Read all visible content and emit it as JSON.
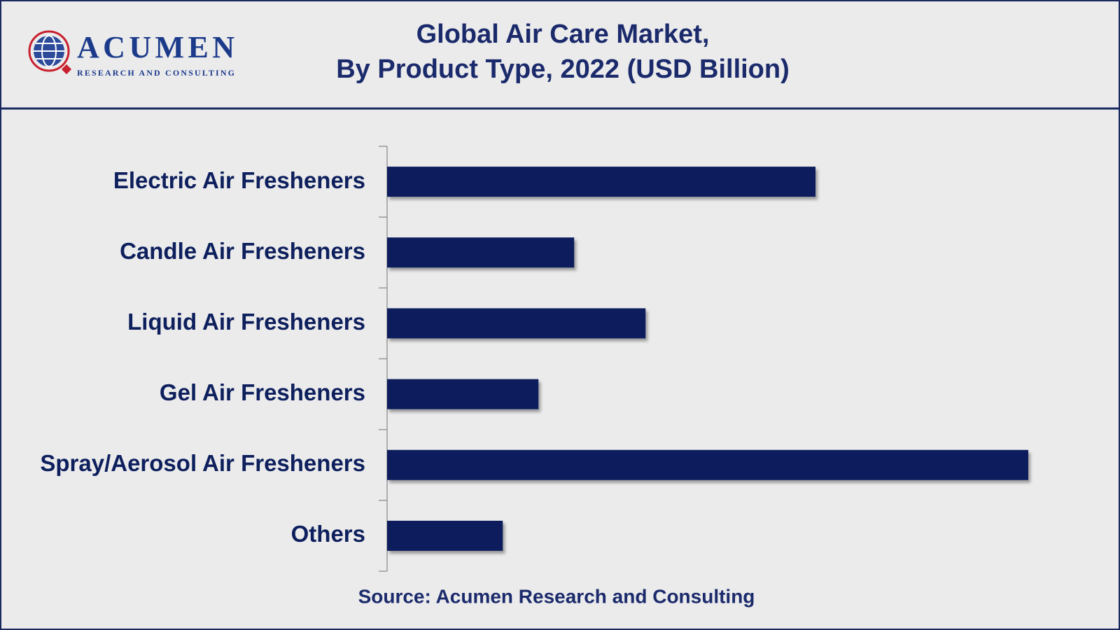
{
  "logo": {
    "name": "ACUMEN",
    "tagline": "RESEARCH AND CONSULTING"
  },
  "chart_data": {
    "type": "bar",
    "orientation": "horizontal",
    "title": [
      "Global Air Care Market,",
      "By Product Type, 2022 (USD Billion)"
    ],
    "categories": [
      "Electric Air Fresheners",
      "Candle Air Fresheners",
      "Liquid Air Fresheners",
      "Gel Air Fresheners",
      "Spray/Aerosol Air Fresheners",
      "Others"
    ],
    "values": [
      3.0,
      1.31,
      1.81,
      1.06,
      4.49,
      0.81
    ],
    "color": "#0b1f5b",
    "xlim": [
      0,
      5
    ],
    "source": "Source: Acumen Research and Consulting"
  }
}
